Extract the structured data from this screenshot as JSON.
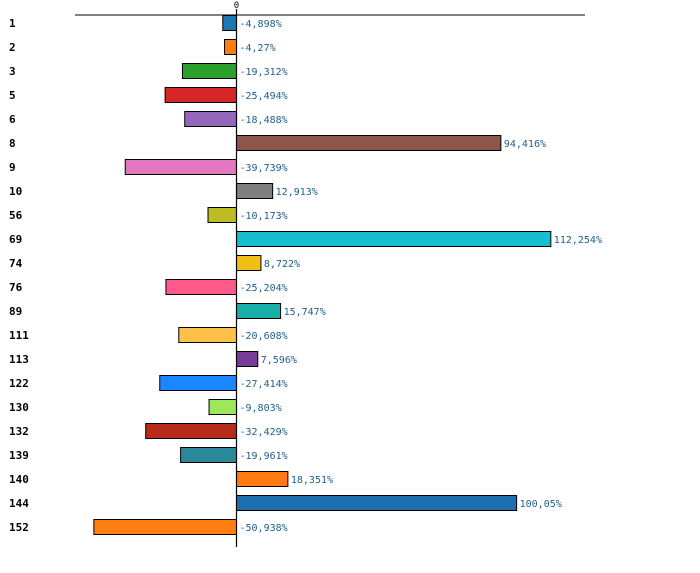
{
  "chart_data": {
    "type": "bar",
    "orientation": "horizontal",
    "title": "",
    "xlabel": "",
    "ylabel": "",
    "zero_label": "0",
    "xlim": [
      -56,
      121
    ],
    "categories": [
      "1",
      "2",
      "3",
      "5",
      "6",
      "8",
      "9",
      "10",
      "56",
      "69",
      "74",
      "76",
      "89",
      "111",
      "113",
      "122",
      "130",
      "132",
      "139",
      "140",
      "144",
      "152"
    ],
    "values": [
      -4.898,
      -4.27,
      -19.312,
      -25.494,
      -18.488,
      94.416,
      -39.739,
      12.913,
      -10.173,
      112.254,
      8.722,
      -25.204,
      15.747,
      -20.608,
      7.596,
      -27.414,
      -9.803,
      -32.429,
      -19.961,
      18.351,
      100.05,
      -50.938
    ],
    "value_labels": [
      "-4,898%",
      "-4,27%",
      "-19,312%",
      "-25,494%",
      "-18,488%",
      "94,416%",
      "-39,739%",
      "12,913%",
      "-10,173%",
      "112,254%",
      "8,722%",
      "-25,204%",
      "15,747%",
      "-20,608%",
      "7,596%",
      "-27,414%",
      "-9,803%",
      "-32,429%",
      "-19,961%",
      "18,351%",
      "100,05%",
      "-50,938%"
    ],
    "colors": [
      "#1f77b4",
      "#ff7f0e",
      "#2ca02c",
      "#d62728",
      "#9467bd",
      "#8c564b",
      "#e377c2",
      "#7f7f7f",
      "#bcbd22",
      "#17becf",
      "#f2c012",
      "#ff5a8c",
      "#16b0a8",
      "#ffc04a",
      "#7a3a9a",
      "#1a86ff",
      "#9ce85a",
      "#b82a1a",
      "#2a8a9a",
      "#ff7a10",
      "#1f6fb0",
      "#ff8010"
    ]
  }
}
